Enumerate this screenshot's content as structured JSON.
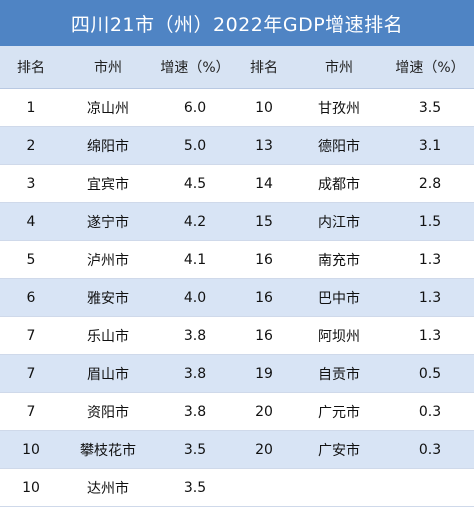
{
  "title": "四川21市（州）2022年GDP增速排名",
  "headers": [
    "排名",
    "市州",
    "增速（%）",
    "排名",
    "市州",
    "增速（%）"
  ],
  "rows": [
    {
      "l_rank": "1",
      "l_city": "凉山州",
      "l_growth": "6.0",
      "r_rank": "10",
      "r_city": "甘孜州",
      "r_growth": "3.5"
    },
    {
      "l_rank": "2",
      "l_city": "绵阳市",
      "l_growth": "5.0",
      "r_rank": "13",
      "r_city": "德阳市",
      "r_growth": "3.1"
    },
    {
      "l_rank": "3",
      "l_city": "宜宾市",
      "l_growth": "4.5",
      "r_rank": "14",
      "r_city": "成都市",
      "r_growth": "2.8"
    },
    {
      "l_rank": "4",
      "l_city": "遂宁市",
      "l_growth": "4.2",
      "r_rank": "15",
      "r_city": "内江市",
      "r_growth": "1.5"
    },
    {
      "l_rank": "5",
      "l_city": "泸州市",
      "l_growth": "4.1",
      "r_rank": "16",
      "r_city": "南充市",
      "r_growth": "1.3"
    },
    {
      "l_rank": "6",
      "l_city": "雅安市",
      "l_growth": "4.0",
      "r_rank": "16",
      "r_city": "巴中市",
      "r_growth": "1.3"
    },
    {
      "l_rank": "7",
      "l_city": "乐山市",
      "l_growth": "3.8",
      "r_rank": "16",
      "r_city": "阿坝州",
      "r_growth": "1.3"
    },
    {
      "l_rank": "7",
      "l_city": "眉山市",
      "l_growth": "3.8",
      "r_rank": "19",
      "r_city": "自贡市",
      "r_growth": "0.5"
    },
    {
      "l_rank": "7",
      "l_city": "资阳市",
      "l_growth": "3.8",
      "r_rank": "20",
      "r_city": "广元市",
      "r_growth": "0.3"
    },
    {
      "l_rank": "10",
      "l_city": "攀枝花市",
      "l_growth": "3.5",
      "r_rank": "20",
      "r_city": "广安市",
      "r_growth": "0.3"
    },
    {
      "l_rank": "10",
      "l_city": "达州市",
      "l_growth": "3.5",
      "r_rank": "",
      "r_city": "",
      "r_growth": ""
    }
  ],
  "colors": {
    "title_bg": "#4f84c4",
    "header_bg": "#d7e3f3",
    "alt_row_bg": "#d8e4f5"
  }
}
